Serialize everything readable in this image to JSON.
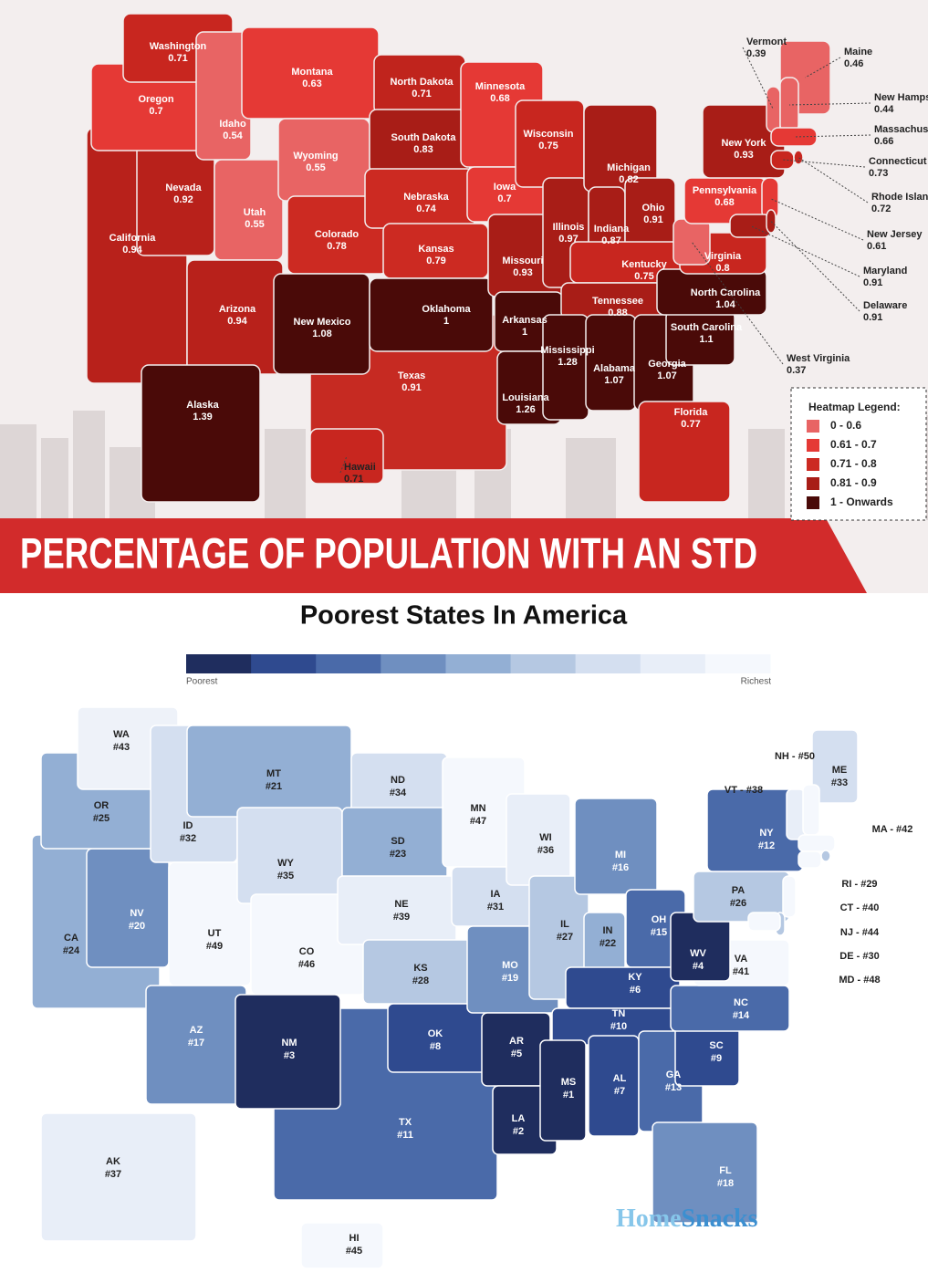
{
  "top_map": {
    "title": "PERCENTAGE OF POPULATION WITH AN STD",
    "legend": {
      "title": "Heatmap Legend:",
      "items": [
        {
          "label": "0 - 0.6",
          "color": "#e86464"
        },
        {
          "label": "0.61 - 0.7",
          "color": "#e53935"
        },
        {
          "label": "0.71 - 0.8",
          "color": "#cc2a22"
        },
        {
          "label": "0.81 - 0.9",
          "color": "#a81d17"
        },
        {
          "label": "1 - Onwards",
          "color": "#4a0a08"
        }
      ]
    },
    "states": [
      {
        "name": "Texas",
        "value": 0.91,
        "color": "#c62a22"
      },
      {
        "name": "California",
        "value": 0.94,
        "color": "#b8211b"
      },
      {
        "name": "Nevada",
        "value": 0.92,
        "color": "#b8211b"
      },
      {
        "name": "Oregon",
        "value": 0.7,
        "color": "#e53935"
      },
      {
        "name": "Washington",
        "value": 0.71,
        "color": "#c8261f"
      },
      {
        "name": "Idaho",
        "value": 0.54,
        "color": "#e86464"
      },
      {
        "name": "Montana",
        "value": 0.63,
        "color": "#e53935"
      },
      {
        "name": "Utah",
        "value": 0.55,
        "color": "#e86464"
      },
      {
        "name": "Wyoming",
        "value": 0.55,
        "color": "#e86464"
      },
      {
        "name": "Arizona",
        "value": 0.94,
        "color": "#b8211b"
      },
      {
        "name": "Colorado",
        "value": 0.78,
        "color": "#cc2a22"
      },
      {
        "name": "New Mexico",
        "value": 1.08,
        "color": "#4a0a08"
      },
      {
        "name": "North Dakota",
        "value": 0.71,
        "color": "#c0241d"
      },
      {
        "name": "South Dakota",
        "value": 0.83,
        "color": "#a81d17"
      },
      {
        "name": "Nebraska",
        "value": 0.74,
        "color": "#cc2a22"
      },
      {
        "name": "Kansas",
        "value": 0.79,
        "color": "#cc2a22"
      },
      {
        "name": "Oklahoma",
        "value": 1,
        "color": "#4a0a08"
      },
      {
        "name": "Minnesota",
        "value": 0.68,
        "color": "#e53935"
      },
      {
        "name": "Iowa",
        "value": 0.7,
        "color": "#e53935"
      },
      {
        "name": "Missouri",
        "value": 0.93,
        "color": "#a81d17"
      },
      {
        "name": "Arkansas",
        "value": 1,
        "color": "#4a0a08"
      },
      {
        "name": "Louisiana",
        "value": 1.26,
        "color": "#4a0a08"
      },
      {
        "name": "Wisconsin",
        "value": 0.75,
        "color": "#c8261f"
      },
      {
        "name": "Illinois",
        "value": 0.97,
        "color": "#a81d17"
      },
      {
        "name": "Michigan",
        "value": 0.82,
        "color": "#a81d17"
      },
      {
        "name": "Indiana",
        "value": 0.87,
        "color": "#a81d17"
      },
      {
        "name": "Ohio",
        "value": 0.91,
        "color": "#a81d17"
      },
      {
        "name": "Kentucky",
        "value": 0.75,
        "color": "#c8261f"
      },
      {
        "name": "Tennessee",
        "value": 0.88,
        "color": "#a81d17"
      },
      {
        "name": "Mississippi",
        "value": 1.28,
        "color": "#4a0a08"
      },
      {
        "name": "Alabama",
        "value": 1.07,
        "color": "#4a0a08"
      },
      {
        "name": "Georgia",
        "value": 1.07,
        "color": "#4a0a08"
      },
      {
        "name": "Florida",
        "value": 0.77,
        "color": "#c8261f"
      },
      {
        "name": "South Carolina",
        "value": 1.1,
        "color": "#4a0a08"
      },
      {
        "name": "North Carolina",
        "value": 1.04,
        "color": "#4a0a08"
      },
      {
        "name": "Virginia",
        "value": 0.8,
        "color": "#c8261f"
      },
      {
        "name": "West Virginia",
        "value": 0.37,
        "color": "#e86464"
      },
      {
        "name": "Pennsylvania",
        "value": 0.68,
        "color": "#e53935"
      },
      {
        "name": "New York",
        "value": 0.93,
        "color": "#a81d17"
      },
      {
        "name": "Maine",
        "value": 0.46,
        "color": "#e86464"
      },
      {
        "name": "Vermont",
        "value": 0.39,
        "color": "#e86464"
      },
      {
        "name": "New Hampshire",
        "value": 0.44,
        "color": "#e86464"
      },
      {
        "name": "Massachusetts",
        "value": 0.66,
        "color": "#e53935"
      },
      {
        "name": "Connecticut",
        "value": 0.73,
        "color": "#c8261f"
      },
      {
        "name": "Rhode Island",
        "value": 0.72,
        "color": "#c8261f"
      },
      {
        "name": "New Jersey",
        "value": 0.61,
        "color": "#e53935"
      },
      {
        "name": "Maryland",
        "value": 0.91,
        "color": "#a81d17"
      },
      {
        "name": "Delaware",
        "value": 0.91,
        "color": "#a81d17"
      },
      {
        "name": "Alaska",
        "value": 1.39,
        "color": "#4a0a08"
      },
      {
        "name": "Hawaii",
        "value": 0.71,
        "color": "#c8261f"
      }
    ]
  },
  "bottom_map": {
    "title": "Poorest States In America",
    "scale": {
      "colors": [
        "#1f2d5e",
        "#2f4a8f",
        "#4a6aa9",
        "#6f8fc0",
        "#93afd4",
        "#b5c8e2",
        "#d4dff0",
        "#e8eef8",
        "#f5f8fd"
      ],
      "low_label": "Poorest",
      "high_label": "Richest"
    },
    "states": [
      {
        "abbr": "TX",
        "rank": "#11",
        "color": "#4a6aa9"
      },
      {
        "abbr": "CA",
        "rank": "#24",
        "color": "#93afd4"
      },
      {
        "abbr": "NV",
        "rank": "#20",
        "color": "#6f8fc0"
      },
      {
        "abbr": "OR",
        "rank": "#25",
        "color": "#93afd4"
      },
      {
        "abbr": "WA",
        "rank": "#43",
        "color": "#eef2f9"
      },
      {
        "abbr": "ID",
        "rank": "#32",
        "color": "#d4dff0"
      },
      {
        "abbr": "MT",
        "rank": "#21",
        "color": "#93afd4"
      },
      {
        "abbr": "UT",
        "rank": "#49",
        "color": "#f5f8fd"
      },
      {
        "abbr": "WY",
        "rank": "#35",
        "color": "#d4dff0"
      },
      {
        "abbr": "AZ",
        "rank": "#17",
        "color": "#6f8fc0"
      },
      {
        "abbr": "CO",
        "rank": "#46",
        "color": "#f5f8fd"
      },
      {
        "abbr": "NM",
        "rank": "#3",
        "color": "#1f2d5e"
      },
      {
        "abbr": "ND",
        "rank": "#34",
        "color": "#d4dff0"
      },
      {
        "abbr": "SD",
        "rank": "#23",
        "color": "#93afd4"
      },
      {
        "abbr": "NE",
        "rank": "#39",
        "color": "#e8eef8"
      },
      {
        "abbr": "KS",
        "rank": "#28",
        "color": "#b5c8e2"
      },
      {
        "abbr": "OK",
        "rank": "#8",
        "color": "#2f4a8f"
      },
      {
        "abbr": "MN",
        "rank": "#47",
        "color": "#f5f8fd"
      },
      {
        "abbr": "IA",
        "rank": "#31",
        "color": "#d4dff0"
      },
      {
        "abbr": "MO",
        "rank": "#19",
        "color": "#6f8fc0"
      },
      {
        "abbr": "AR",
        "rank": "#5",
        "color": "#1f2d5e"
      },
      {
        "abbr": "LA",
        "rank": "#2",
        "color": "#1f2d5e"
      },
      {
        "abbr": "WI",
        "rank": "#36",
        "color": "#e8eef8"
      },
      {
        "abbr": "IL",
        "rank": "#27",
        "color": "#b5c8e2"
      },
      {
        "abbr": "MI",
        "rank": "#16",
        "color": "#6f8fc0"
      },
      {
        "abbr": "IN",
        "rank": "#22",
        "color": "#93afd4"
      },
      {
        "abbr": "OH",
        "rank": "#15",
        "color": "#4a6aa9"
      },
      {
        "abbr": "KY",
        "rank": "#6",
        "color": "#2f4a8f"
      },
      {
        "abbr": "TN",
        "rank": "#10",
        "color": "#2f4a8f"
      },
      {
        "abbr": "MS",
        "rank": "#1",
        "color": "#1f2d5e"
      },
      {
        "abbr": "AL",
        "rank": "#7",
        "color": "#2f4a8f"
      },
      {
        "abbr": "GA",
        "rank": "#13",
        "color": "#4a6aa9"
      },
      {
        "abbr": "FL",
        "rank": "#18",
        "color": "#6f8fc0"
      },
      {
        "abbr": "SC",
        "rank": "#9",
        "color": "#2f4a8f"
      },
      {
        "abbr": "NC",
        "rank": "#14",
        "color": "#4a6aa9"
      },
      {
        "abbr": "VA",
        "rank": "#41",
        "color": "#f5f8fd"
      },
      {
        "abbr": "WV",
        "rank": "#4",
        "color": "#1f2d5e"
      },
      {
        "abbr": "PA",
        "rank": "#26",
        "color": "#b5c8e2"
      },
      {
        "abbr": "NY",
        "rank": "#12",
        "color": "#4a6aa9"
      },
      {
        "abbr": "ME",
        "rank": "#33",
        "color": "#d4dff0"
      },
      {
        "label": "VT - #38",
        "color": "#e8eef8"
      },
      {
        "label": "NH - #50",
        "color": "#f5f8fd"
      },
      {
        "label": "MA - #42",
        "color": "#f5f8fd"
      },
      {
        "label": "RI - #29",
        "color": "#b5c8e2"
      },
      {
        "label": "CT - #40",
        "color": "#f5f8fd"
      },
      {
        "label": "NJ - #44",
        "color": "#f5f8fd"
      },
      {
        "label": "DE - #30",
        "color": "#b5c8e2"
      },
      {
        "label": "MD - #48",
        "color": "#f5f8fd"
      },
      {
        "abbr": "AK",
        "rank": "#37",
        "color": "#e8eef8"
      },
      {
        "abbr": "HI",
        "rank": "#45",
        "color": "#f5f8fd"
      }
    ],
    "logo": [
      "Home",
      "Snacks"
    ]
  }
}
